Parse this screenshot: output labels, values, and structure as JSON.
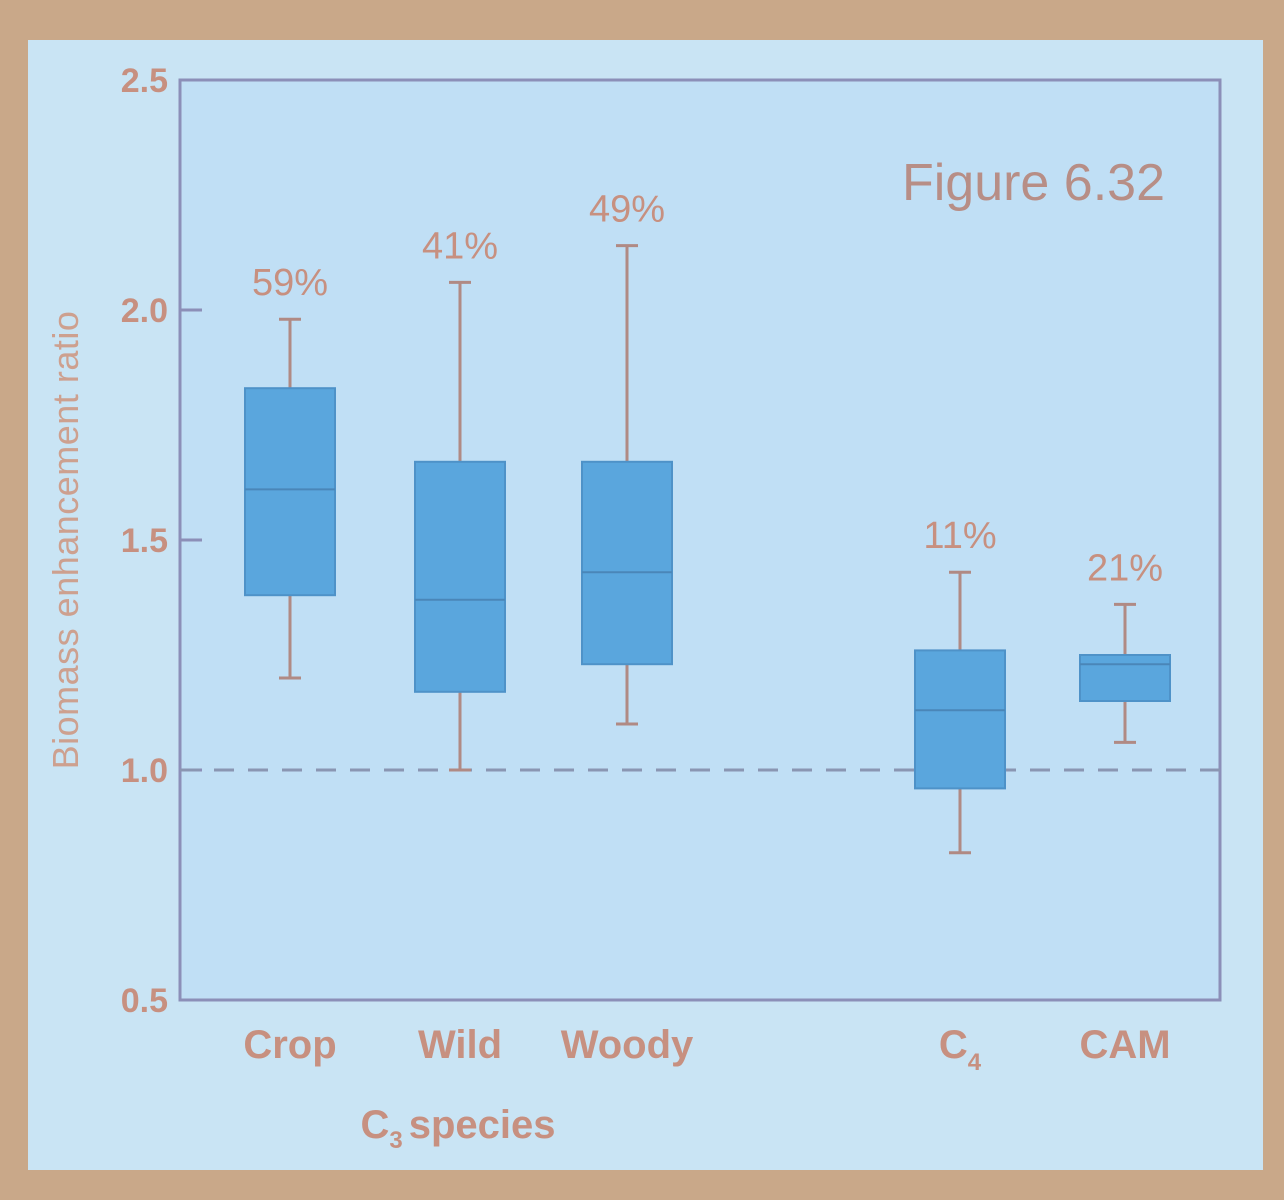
{
  "chart_data": {
    "type": "box",
    "figure_label": "Figure 6.32",
    "ylabel": "Biomass enhancement ratio",
    "xlabel": "species",
    "xlabel_prefix": "C",
    "xlabel_sub": "3",
    "ylim": [
      0.5,
      2.5
    ],
    "yticks": [
      "0.5",
      "1.0",
      "1.5",
      "2.0",
      "2.5"
    ],
    "reference_line": 1.0,
    "categories": [
      {
        "label": "Crop",
        "sub": "",
        "annotation": "59%",
        "min": 1.2,
        "q1": 1.38,
        "median": 1.61,
        "q3": 1.83,
        "max": 1.98
      },
      {
        "label": "Wild",
        "sub": "",
        "annotation": "41%",
        "min": 1.0,
        "q1": 1.17,
        "median": 1.37,
        "q3": 1.67,
        "max": 2.06
      },
      {
        "label": "Woody",
        "sub": "",
        "annotation": "49%",
        "min": 1.1,
        "q1": 1.23,
        "median": 1.43,
        "q3": 1.67,
        "max": 2.14
      },
      {
        "label": "C",
        "sub": "4",
        "annotation": "11%",
        "min": 0.82,
        "q1": 0.96,
        "median": 1.13,
        "q3": 1.26,
        "max": 1.43
      },
      {
        "label": "CAM",
        "sub": "",
        "annotation": "21%",
        "min": 1.06,
        "q1": 1.15,
        "median": 1.23,
        "q3": 1.25,
        "max": 1.36
      }
    ],
    "colors": {
      "box": "#5aa6dd",
      "whisker": "#b08a84",
      "axis": "#8c8fb8",
      "text": "#c79080",
      "plot_bg": "#c0dff5",
      "slide_bg": "#c9e4f4"
    }
  }
}
